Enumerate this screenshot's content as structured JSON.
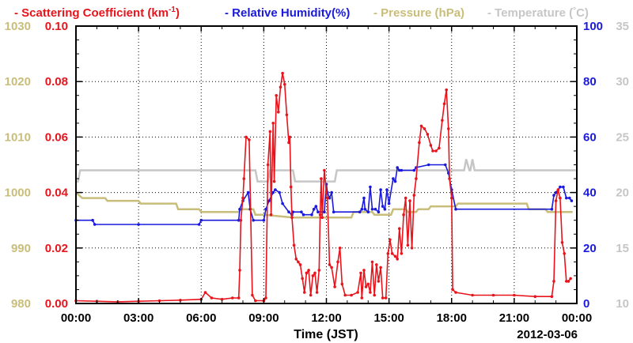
{
  "chart_data": {
    "type": "line",
    "title": "",
    "legend": [
      {
        "prefix": "-",
        "text": "Scattering Coefficient (km",
        "sup": "-1",
        "suffix": ")",
        "color": "#e8141c"
      },
      {
        "prefix": "-",
        "text": "Relative Humidity(%)",
        "color": "#1a1adc"
      },
      {
        "prefix": "-",
        "text": "Pressure (hPa)",
        "color": "#c9bd7a"
      },
      {
        "prefix": "-",
        "text": "Temperature (",
        "deg": "°",
        "suffix": "C)",
        "color": "#c6c6c6"
      }
    ],
    "xlabel": "Time (JST)",
    "date_label": "2012-03-06",
    "x_ticks": [
      "00:00",
      "03:00",
      "06:00",
      "09:00",
      "12:00",
      "15:00",
      "18:00",
      "21:00",
      "00:00"
    ],
    "xlim_hours": [
      0,
      24
    ],
    "grid": true,
    "axes": {
      "pressure": {
        "side": "left-outer",
        "ticks": [
          "980",
          "990",
          "1000",
          "1010",
          "1020",
          "1030"
        ],
        "ylim": [
          980,
          1030
        ],
        "color": "#c9bd7a"
      },
      "scattering": {
        "side": "left-inner",
        "ticks": [
          "0.00",
          "0.02",
          "0.04",
          "0.06",
          "0.08",
          "0.10"
        ],
        "ylim": [
          0,
          0.1
        ],
        "color": "#e8141c"
      },
      "humidity": {
        "side": "right-inner",
        "ticks": [
          "0",
          "20",
          "40",
          "60",
          "80",
          "100"
        ],
        "ylim": [
          0,
          100
        ],
        "color": "#1a1adc"
      },
      "temperature": {
        "side": "right-outer",
        "ticks": [
          "10",
          "15",
          "20",
          "25",
          "30",
          "35"
        ],
        "ylim": [
          10,
          35
        ],
        "color": "#c6c6c6"
      }
    },
    "series": [
      {
        "name": "Scattering Coefficient",
        "axis": "scattering",
        "color": "#e8141c",
        "markers": true,
        "points": [
          [
            0,
            0.001
          ],
          [
            1,
            0.0008
          ],
          [
            2,
            0.0006
          ],
          [
            3,
            0.0008
          ],
          [
            4,
            0.001
          ],
          [
            5,
            0.0012
          ],
          [
            6,
            0.0015
          ],
          [
            6.2,
            0.004
          ],
          [
            6.5,
            0.002
          ],
          [
            7,
            0.0015
          ],
          [
            7.5,
            0.002
          ],
          [
            7.8,
            0.002
          ],
          [
            7.85,
            0.012
          ],
          [
            7.9,
            0.03
          ],
          [
            8.0,
            0.038
          ],
          [
            8.05,
            0.045
          ],
          [
            8.15,
            0.06
          ],
          [
            8.3,
            0.059
          ],
          [
            8.45,
            0.003
          ],
          [
            8.6,
            0.001
          ],
          [
            9.0,
            0.001
          ],
          [
            9.1,
            0.002
          ],
          [
            9.2,
            0.05
          ],
          [
            9.3,
            0.062
          ],
          [
            9.35,
            0.032
          ],
          [
            9.45,
            0.065
          ],
          [
            9.5,
            0.044
          ],
          [
            9.6,
            0.075
          ],
          [
            9.7,
            0.069
          ],
          [
            9.8,
            0.078
          ],
          [
            9.9,
            0.083
          ],
          [
            10.0,
            0.079
          ],
          [
            10.1,
            0.068
          ],
          [
            10.2,
            0.058
          ],
          [
            10.25,
            0.06
          ],
          [
            10.3,
            0.042
          ],
          [
            10.35,
            0.031
          ],
          [
            10.45,
            0.021
          ],
          [
            10.55,
            0.016
          ],
          [
            10.65,
            0.015
          ],
          [
            10.75,
            0.014
          ],
          [
            10.85,
            0.009
          ],
          [
            10.95,
            0.004
          ],
          [
            11.05,
            0.011
          ],
          [
            11.15,
            0.012
          ],
          [
            11.25,
            0.003
          ],
          [
            11.35,
            0.01
          ],
          [
            11.45,
            0.011
          ],
          [
            11.55,
            0.004
          ],
          [
            11.65,
            0.012
          ],
          [
            11.7,
            0.032
          ],
          [
            11.75,
            0.045
          ],
          [
            11.8,
            0.031
          ],
          [
            11.9,
            0.048
          ],
          [
            12.0,
            0.04
          ],
          [
            12.05,
            0.038
          ],
          [
            12.15,
            0.014
          ],
          [
            12.25,
            0.013
          ],
          [
            12.4,
            0.006
          ],
          [
            12.55,
            0.015
          ],
          [
            12.65,
            0.02
          ],
          [
            12.75,
            0.007
          ],
          [
            12.9,
            0.003
          ],
          [
            13.2,
            0.003
          ],
          [
            13.5,
            0.004
          ],
          [
            13.65,
            0.011
          ],
          [
            13.7,
            0.002
          ],
          [
            13.8,
            0.012
          ],
          [
            13.9,
            0.006
          ],
          [
            14.0,
            0.007
          ],
          [
            14.1,
            0.004
          ],
          [
            14.2,
            0.015
          ],
          [
            14.3,
            0.003
          ],
          [
            14.4,
            0.014
          ],
          [
            14.5,
            0.008
          ],
          [
            14.6,
            0.013
          ],
          [
            14.7,
            0.002
          ],
          [
            14.85,
            0.002
          ],
          [
            14.95,
            0.018
          ],
          [
            15.05,
            0.023
          ],
          [
            15.15,
            0.018
          ],
          [
            15.3,
            0.017
          ],
          [
            15.4,
            0.016
          ],
          [
            15.5,
            0.027
          ],
          [
            15.6,
            0.018
          ],
          [
            15.7,
            0.032
          ],
          [
            15.8,
            0.038
          ],
          [
            15.9,
            0.021
          ],
          [
            16.0,
            0.037
          ],
          [
            16.1,
            0.02
          ],
          [
            16.2,
            0.039
          ],
          [
            16.3,
            0.045
          ],
          [
            16.45,
            0.058
          ],
          [
            16.55,
            0.064
          ],
          [
            16.7,
            0.063
          ],
          [
            16.85,
            0.061
          ],
          [
            17.0,
            0.057
          ],
          [
            17.1,
            0.055
          ],
          [
            17.25,
            0.055
          ],
          [
            17.4,
            0.056
          ],
          [
            17.55,
            0.066
          ],
          [
            17.65,
            0.072
          ],
          [
            17.75,
            0.077
          ],
          [
            17.85,
            0.063
          ],
          [
            17.9,
            0.045
          ],
          [
            18.0,
            0.038
          ],
          [
            18.05,
            0.005
          ],
          [
            18.2,
            0.004
          ],
          [
            19,
            0.003
          ],
          [
            20,
            0.003
          ],
          [
            21,
            0.003
          ],
          [
            22,
            0.0025
          ],
          [
            22.8,
            0.0025
          ],
          [
            22.9,
            0.008
          ],
          [
            23.0,
            0.037
          ],
          [
            23.1,
            0.041
          ],
          [
            23.2,
            0.038
          ],
          [
            23.3,
            0.022
          ],
          [
            23.4,
            0.018
          ],
          [
            23.5,
            0.008
          ],
          [
            23.6,
            0.008
          ],
          [
            23.7,
            0.009
          ]
        ]
      },
      {
        "name": "Relative Humidity",
        "axis": "humidity",
        "color": "#1a1adc",
        "markers": true,
        "points": [
          [
            0,
            30
          ],
          [
            0.8,
            30
          ],
          [
            0.9,
            28.5
          ],
          [
            3,
            28.5
          ],
          [
            5.9,
            28.5
          ],
          [
            6.0,
            30
          ],
          [
            7.8,
            30
          ],
          [
            7.85,
            34
          ],
          [
            8.0,
            37
          ],
          [
            8.25,
            40
          ],
          [
            8.35,
            34
          ],
          [
            8.5,
            30
          ],
          [
            9.0,
            30
          ],
          [
            9.1,
            34
          ],
          [
            9.25,
            37
          ],
          [
            9.45,
            40
          ],
          [
            9.55,
            41
          ],
          [
            9.75,
            40
          ],
          [
            9.9,
            36
          ],
          [
            10.2,
            33
          ],
          [
            10.35,
            32
          ],
          [
            10.4,
            33
          ],
          [
            10.8,
            33
          ],
          [
            10.9,
            32
          ],
          [
            11.3,
            32
          ],
          [
            11.4,
            34
          ],
          [
            11.5,
            35
          ],
          [
            11.6,
            33
          ],
          [
            11.9,
            33
          ],
          [
            12.0,
            43
          ],
          [
            12.05,
            40
          ],
          [
            12.15,
            38
          ],
          [
            12.25,
            40
          ],
          [
            12.35,
            33
          ],
          [
            13.6,
            33
          ],
          [
            13.7,
            34
          ],
          [
            13.8,
            38
          ],
          [
            13.85,
            34
          ],
          [
            14.0,
            33
          ],
          [
            14.1,
            42
          ],
          [
            14.2,
            34
          ],
          [
            14.35,
            34
          ],
          [
            14.5,
            33
          ],
          [
            14.6,
            41
          ],
          [
            14.7,
            35
          ],
          [
            14.8,
            34
          ],
          [
            14.9,
            41
          ],
          [
            15.0,
            36
          ],
          [
            15.2,
            45
          ],
          [
            15.3,
            44
          ],
          [
            15.4,
            49
          ],
          [
            15.5,
            48
          ],
          [
            15.6,
            48
          ],
          [
            16.2,
            48
          ],
          [
            16.3,
            49
          ],
          [
            16.9,
            50
          ],
          [
            17.7,
            50
          ],
          [
            17.85,
            47
          ],
          [
            18.0,
            41
          ],
          [
            18.2,
            34
          ],
          [
            22.8,
            34
          ],
          [
            22.9,
            39
          ],
          [
            23.0,
            40
          ],
          [
            23.2,
            42
          ],
          [
            23.35,
            42
          ],
          [
            23.5,
            38
          ],
          [
            23.65,
            38
          ],
          [
            23.75,
            37
          ]
        ]
      },
      {
        "name": "Pressure",
        "axis": "pressure",
        "color": "#c9bd7a",
        "markers": false,
        "points": [
          [
            0,
            1000
          ],
          [
            0.3,
            999
          ],
          [
            1.4,
            999
          ],
          [
            1.5,
            998.5
          ],
          [
            3.0,
            998.5
          ],
          [
            3.1,
            998
          ],
          [
            4.8,
            998
          ],
          [
            4.9,
            997
          ],
          [
            5.9,
            997
          ],
          [
            6.0,
            996.5
          ],
          [
            7.8,
            996.5
          ],
          [
            7.9,
            997
          ],
          [
            8.5,
            997
          ],
          [
            8.6,
            996
          ],
          [
            9.0,
            996
          ],
          [
            10.4,
            995.5
          ],
          [
            13.2,
            995.5
          ],
          [
            13.3,
            996.5
          ],
          [
            14.2,
            996.5
          ],
          [
            14.3,
            996
          ],
          [
            15.1,
            996
          ],
          [
            15.2,
            997
          ],
          [
            15.8,
            997
          ],
          [
            15.9,
            996.5
          ],
          [
            16.3,
            996.5
          ],
          [
            16.4,
            997
          ],
          [
            16.9,
            997
          ],
          [
            17.0,
            997.5
          ],
          [
            18.2,
            997.5
          ],
          [
            18.3,
            998
          ],
          [
            21.6,
            998
          ],
          [
            21.7,
            997
          ],
          [
            22.5,
            997
          ],
          [
            22.6,
            996.5
          ],
          [
            23.8,
            996.5
          ]
        ]
      },
      {
        "name": "Temperature",
        "axis": "temperature",
        "color": "#c6c6c6",
        "markers": false,
        "points": [
          [
            0,
            21
          ],
          [
            0.1,
            21
          ],
          [
            0.2,
            22
          ],
          [
            8.6,
            22
          ],
          [
            8.7,
            21
          ],
          [
            9.2,
            21
          ],
          [
            9.3,
            22
          ],
          [
            10.4,
            22
          ],
          [
            10.5,
            21
          ],
          [
            12.4,
            21
          ],
          [
            12.5,
            22
          ],
          [
            18.6,
            22
          ],
          [
            18.7,
            23
          ],
          [
            18.85,
            22
          ],
          [
            18.9,
            22
          ],
          [
            19.0,
            23
          ],
          [
            19.1,
            22
          ],
          [
            23.95,
            22
          ]
        ]
      }
    ]
  }
}
